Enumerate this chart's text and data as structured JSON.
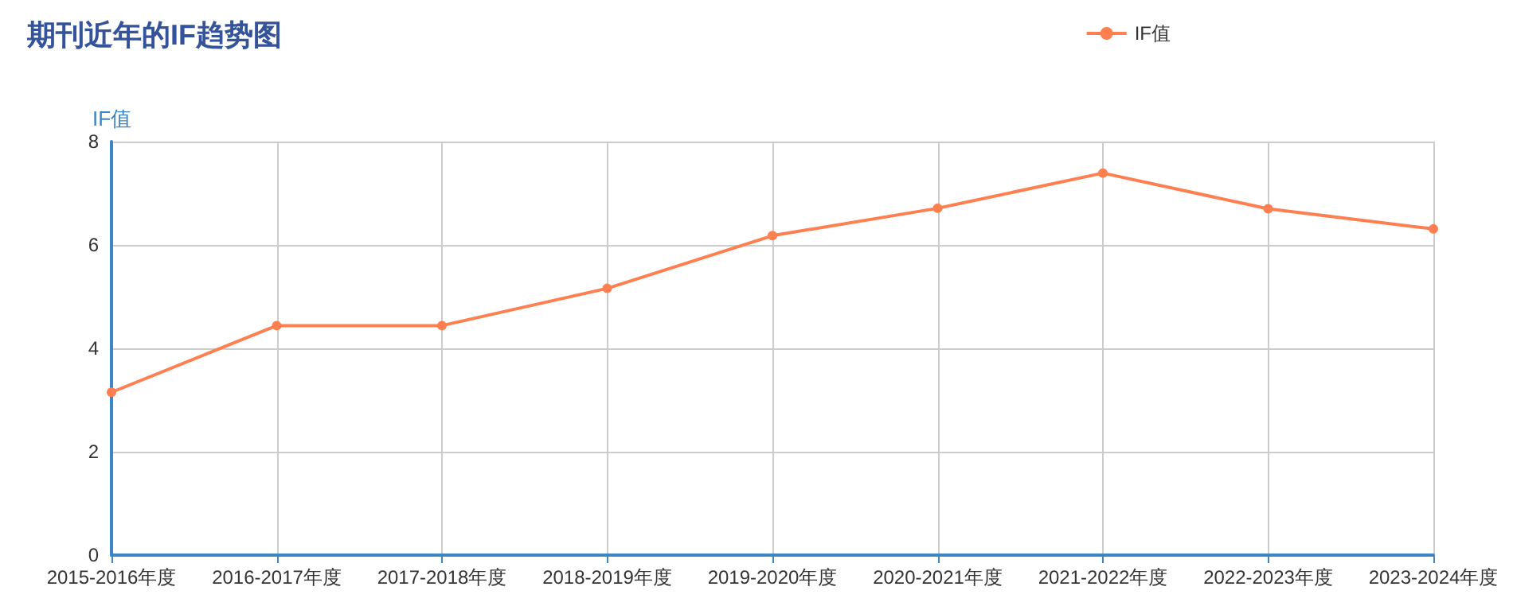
{
  "chart_data": {
    "type": "line",
    "title": "期刊近年的IF趋势图",
    "ylabel": "IF值",
    "categories": [
      "2015-2016年度",
      "2016-2017年度",
      "2017-2018年度",
      "2018-2019年度",
      "2019-2020年度",
      "2020-2021年度",
      "2021-2022年度",
      "2022-2023年度",
      "2023-2024年度"
    ],
    "series": [
      {
        "name": "IF值",
        "color": "#ff7f50",
        "values": [
          3.15,
          4.44,
          4.44,
          5.16,
          6.18,
          6.71,
          7.39,
          6.7,
          6.31
        ]
      }
    ],
    "ylim": [
      0,
      8
    ],
    "yticks": [
      0,
      2,
      4,
      6,
      8
    ],
    "grid": true,
    "legend": "top right",
    "marker": "circle",
    "line_style": "solid"
  }
}
